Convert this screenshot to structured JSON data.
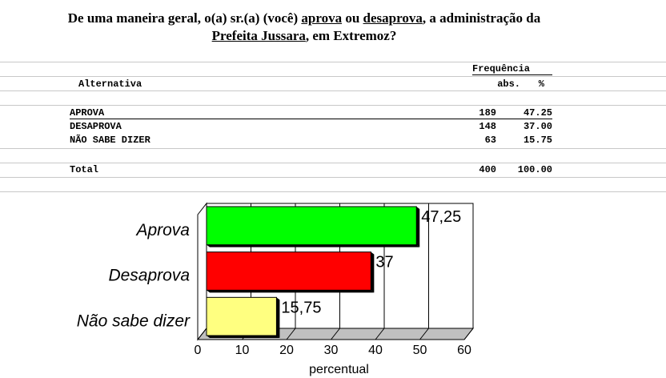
{
  "title": {
    "segments": [
      {
        "text": "De uma maneira geral, o(a) sr.(a) (você) "
      },
      {
        "text": "aprova",
        "underline": true
      },
      {
        "text": " ou "
      },
      {
        "text": "desaprova",
        "underline": true
      },
      {
        "text": ", a administração da"
      },
      {
        "text": "Prefeita Jussara",
        "underline": true,
        "break_before": true
      },
      {
        "text": ", em Extremoz?"
      }
    ]
  },
  "table": {
    "group_header": "Frequência",
    "columns": [
      "Alternativa",
      "abs.",
      "%"
    ],
    "rows": [
      [
        "APROVA",
        189,
        "47.25"
      ],
      [
        "DESAPROVA",
        148,
        "37.00"
      ],
      [
        "NÃO SABE DIZER",
        63,
        "15.75"
      ]
    ],
    "total": [
      "Total",
      400,
      "100.00"
    ]
  },
  "chart_data": {
    "type": "bar",
    "orientation": "horizontal",
    "categories": [
      "Aprova",
      "Desaprova",
      "Não sabe dizer"
    ],
    "values": [
      47.25,
      37,
      15.75
    ],
    "value_labels": [
      "47,25",
      "37",
      "15,75"
    ],
    "colors": [
      "#00ff00",
      "#ff0000",
      "#ffff80"
    ],
    "xlim": [
      0,
      60
    ],
    "xticks": [
      0,
      10,
      20,
      30,
      40,
      50,
      60
    ],
    "xlabel": "percentual",
    "grid": true
  }
}
